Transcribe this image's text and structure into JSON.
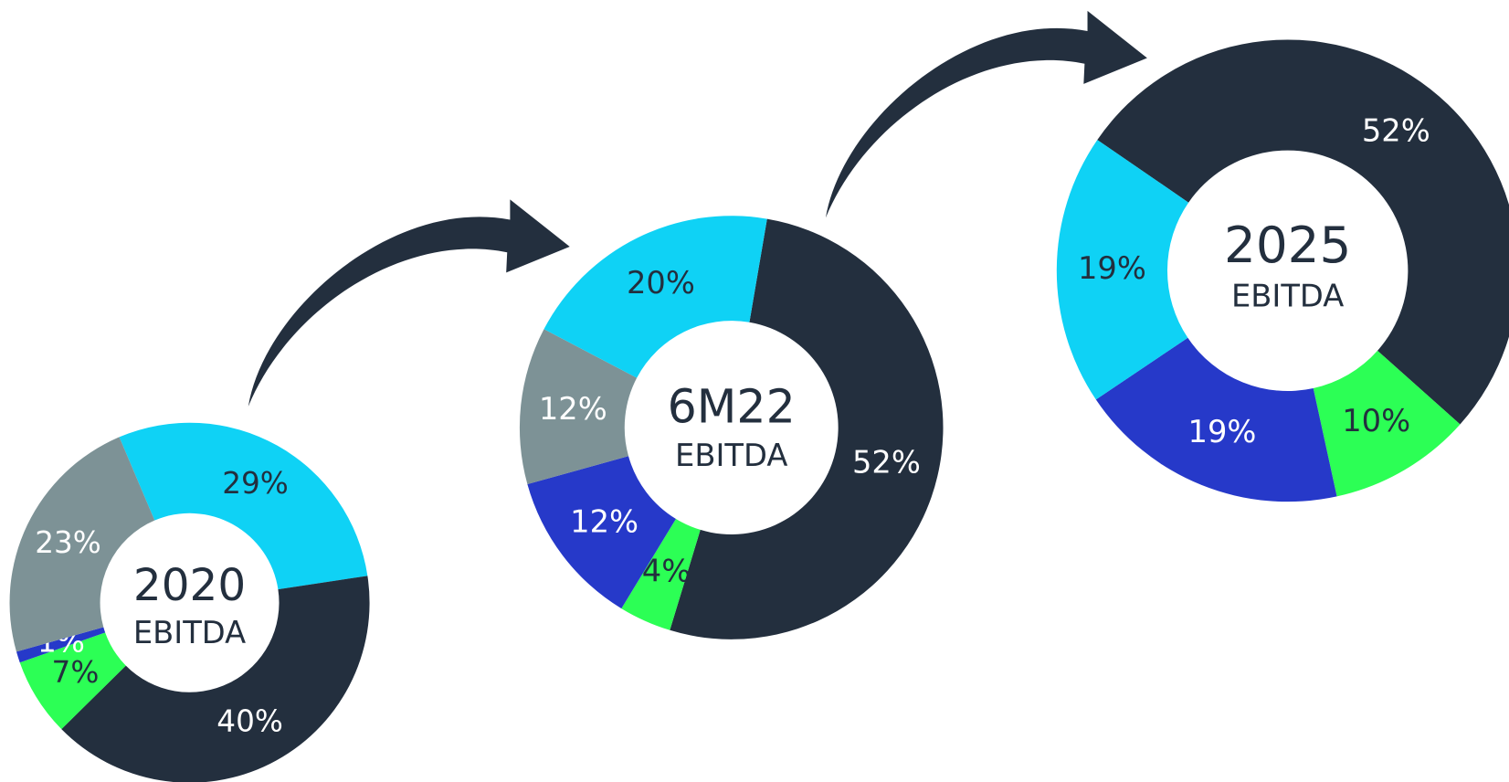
{
  "chart_data": [
    {
      "type": "pie",
      "title": "2020",
      "subtitle": "EBITDA",
      "values": [
        29,
        40,
        7,
        1,
        23
      ],
      "value_labels": [
        "29%",
        "40%",
        "7%",
        "1%",
        "23%"
      ],
      "colors": [
        "#0fd2f5",
        "#232f3e",
        "#2cff55",
        "#2639c9",
        "#7d9296"
      ],
      "label_colors": [
        "#232f3e",
        "#ffffff",
        "#232f3e",
        "#ffffff",
        "#ffffff"
      ]
    },
    {
      "type": "pie",
      "title": "6M22",
      "subtitle": "EBITDA",
      "values": [
        52,
        4,
        12,
        12,
        20
      ],
      "value_labels": [
        "52%",
        "4%",
        "12%",
        "12%",
        "20%"
      ],
      "colors": [
        "#232f3e",
        "#2cff55",
        "#2639c9",
        "#7d9296",
        "#0fd2f5"
      ],
      "label_colors": [
        "#ffffff",
        "#232f3e",
        "#ffffff",
        "#ffffff",
        "#232f3e"
      ]
    },
    {
      "type": "pie",
      "title": "2025",
      "subtitle": "EBITDA",
      "values": [
        52,
        10,
        19,
        19
      ],
      "value_labels": [
        "52%",
        "10%",
        "19%",
        "19%"
      ],
      "colors": [
        "#232f3e",
        "#2cff55",
        "#2639c9",
        "#0fd2f5"
      ],
      "label_colors": [
        "#ffffff",
        "#232f3e",
        "#ffffff",
        "#232f3e"
      ]
    }
  ]
}
